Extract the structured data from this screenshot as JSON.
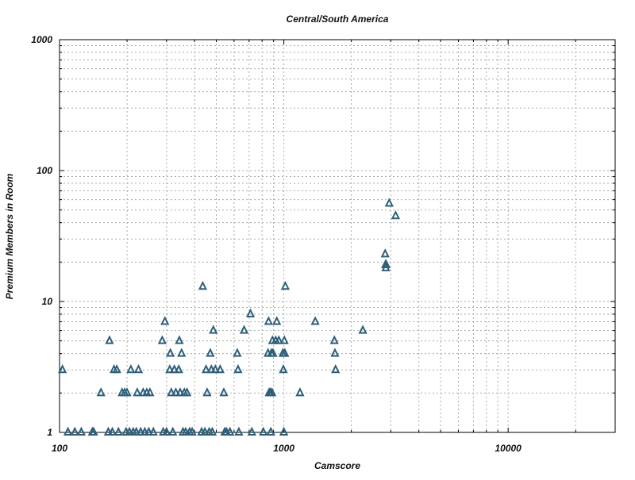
{
  "chart_data": {
    "type": "scatter",
    "title": "Central/South America",
    "xlabel": "Camscore",
    "ylabel": "Premium Members in Room",
    "x_scale": "log",
    "y_scale": "log",
    "xlim": [
      100,
      30000
    ],
    "ylim": [
      1,
      1000
    ],
    "x_ticks": [
      {
        "value": 100,
        "label": "100"
      },
      {
        "value": 1000,
        "label": "1000"
      },
      {
        "value": 10000,
        "label": "10000"
      }
    ],
    "y_ticks": [
      {
        "value": 1,
        "label": "1"
      },
      {
        "value": 10,
        "label": "10"
      },
      {
        "value": 100,
        "label": "100"
      },
      {
        "value": 1000,
        "label": "1000"
      }
    ],
    "grid": true,
    "legend": "none",
    "marker": "triangle",
    "marker_color": "#2e5f7a",
    "points": [
      {
        "x": 103,
        "y": 3
      },
      {
        "x": 109,
        "y": 1
      },
      {
        "x": 117,
        "y": 1
      },
      {
        "x": 125,
        "y": 1
      },
      {
        "x": 140,
        "y": 1
      },
      {
        "x": 142,
        "y": 1
      },
      {
        "x": 153,
        "y": 2
      },
      {
        "x": 165,
        "y": 1
      },
      {
        "x": 167,
        "y": 5
      },
      {
        "x": 172,
        "y": 1
      },
      {
        "x": 175,
        "y": 3
      },
      {
        "x": 180,
        "y": 3
      },
      {
        "x": 183,
        "y": 1
      },
      {
        "x": 190,
        "y": 2
      },
      {
        "x": 195,
        "y": 2
      },
      {
        "x": 198,
        "y": 1
      },
      {
        "x": 200,
        "y": 2
      },
      {
        "x": 205,
        "y": 1
      },
      {
        "x": 208,
        "y": 3
      },
      {
        "x": 213,
        "y": 1
      },
      {
        "x": 220,
        "y": 1
      },
      {
        "x": 222,
        "y": 2
      },
      {
        "x": 225,
        "y": 3
      },
      {
        "x": 230,
        "y": 1
      },
      {
        "x": 236,
        "y": 2
      },
      {
        "x": 240,
        "y": 1
      },
      {
        "x": 245,
        "y": 2
      },
      {
        "x": 250,
        "y": 1
      },
      {
        "x": 253,
        "y": 2
      },
      {
        "x": 262,
        "y": 1
      },
      {
        "x": 287,
        "y": 5
      },
      {
        "x": 290,
        "y": 1
      },
      {
        "x": 295,
        "y": 7
      },
      {
        "x": 300,
        "y": 1
      },
      {
        "x": 310,
        "y": 3
      },
      {
        "x": 312,
        "y": 4
      },
      {
        "x": 315,
        "y": 2
      },
      {
        "x": 320,
        "y": 1
      },
      {
        "x": 325,
        "y": 3
      },
      {
        "x": 330,
        "y": 2
      },
      {
        "x": 340,
        "y": 3
      },
      {
        "x": 342,
        "y": 5
      },
      {
        "x": 345,
        "y": 2
      },
      {
        "x": 350,
        "y": 4
      },
      {
        "x": 355,
        "y": 1
      },
      {
        "x": 360,
        "y": 2
      },
      {
        "x": 365,
        "y": 1
      },
      {
        "x": 370,
        "y": 2
      },
      {
        "x": 380,
        "y": 1
      },
      {
        "x": 390,
        "y": 1
      },
      {
        "x": 430,
        "y": 1
      },
      {
        "x": 435,
        "y": 13
      },
      {
        "x": 445,
        "y": 1
      },
      {
        "x": 450,
        "y": 3
      },
      {
        "x": 455,
        "y": 2
      },
      {
        "x": 465,
        "y": 1
      },
      {
        "x": 470,
        "y": 4
      },
      {
        "x": 475,
        "y": 3
      },
      {
        "x": 480,
        "y": 1
      },
      {
        "x": 485,
        "y": 6
      },
      {
        "x": 495,
        "y": 3
      },
      {
        "x": 520,
        "y": 3
      },
      {
        "x": 540,
        "y": 2
      },
      {
        "x": 545,
        "y": 1
      },
      {
        "x": 555,
        "y": 1
      },
      {
        "x": 575,
        "y": 1
      },
      {
        "x": 620,
        "y": 4
      },
      {
        "x": 625,
        "y": 3
      },
      {
        "x": 630,
        "y": 1
      },
      {
        "x": 665,
        "y": 6
      },
      {
        "x": 710,
        "y": 8
      },
      {
        "x": 720,
        "y": 1
      },
      {
        "x": 810,
        "y": 1
      },
      {
        "x": 850,
        "y": 4
      },
      {
        "x": 855,
        "y": 7
      },
      {
        "x": 860,
        "y": 2
      },
      {
        "x": 870,
        "y": 2
      },
      {
        "x": 875,
        "y": 1
      },
      {
        "x": 880,
        "y": 4
      },
      {
        "x": 885,
        "y": 2
      },
      {
        "x": 890,
        "y": 5
      },
      {
        "x": 895,
        "y": 4
      },
      {
        "x": 920,
        "y": 5
      },
      {
        "x": 930,
        "y": 7
      },
      {
        "x": 950,
        "y": 5
      },
      {
        "x": 990,
        "y": 4
      },
      {
        "x": 995,
        "y": 3
      },
      {
        "x": 1000,
        "y": 1
      },
      {
        "x": 1005,
        "y": 5
      },
      {
        "x": 1010,
        "y": 4
      },
      {
        "x": 1015,
        "y": 13
      },
      {
        "x": 1180,
        "y": 2
      },
      {
        "x": 1380,
        "y": 7
      },
      {
        "x": 1680,
        "y": 5
      },
      {
        "x": 1690,
        "y": 4
      },
      {
        "x": 1700,
        "y": 3
      },
      {
        "x": 2250,
        "y": 6
      },
      {
        "x": 2830,
        "y": 23
      },
      {
        "x": 2840,
        "y": 19
      },
      {
        "x": 2850,
        "y": 18
      },
      {
        "x": 2860,
        "y": 19
      },
      {
        "x": 2950,
        "y": 56
      },
      {
        "x": 3150,
        "y": 45
      }
    ]
  }
}
